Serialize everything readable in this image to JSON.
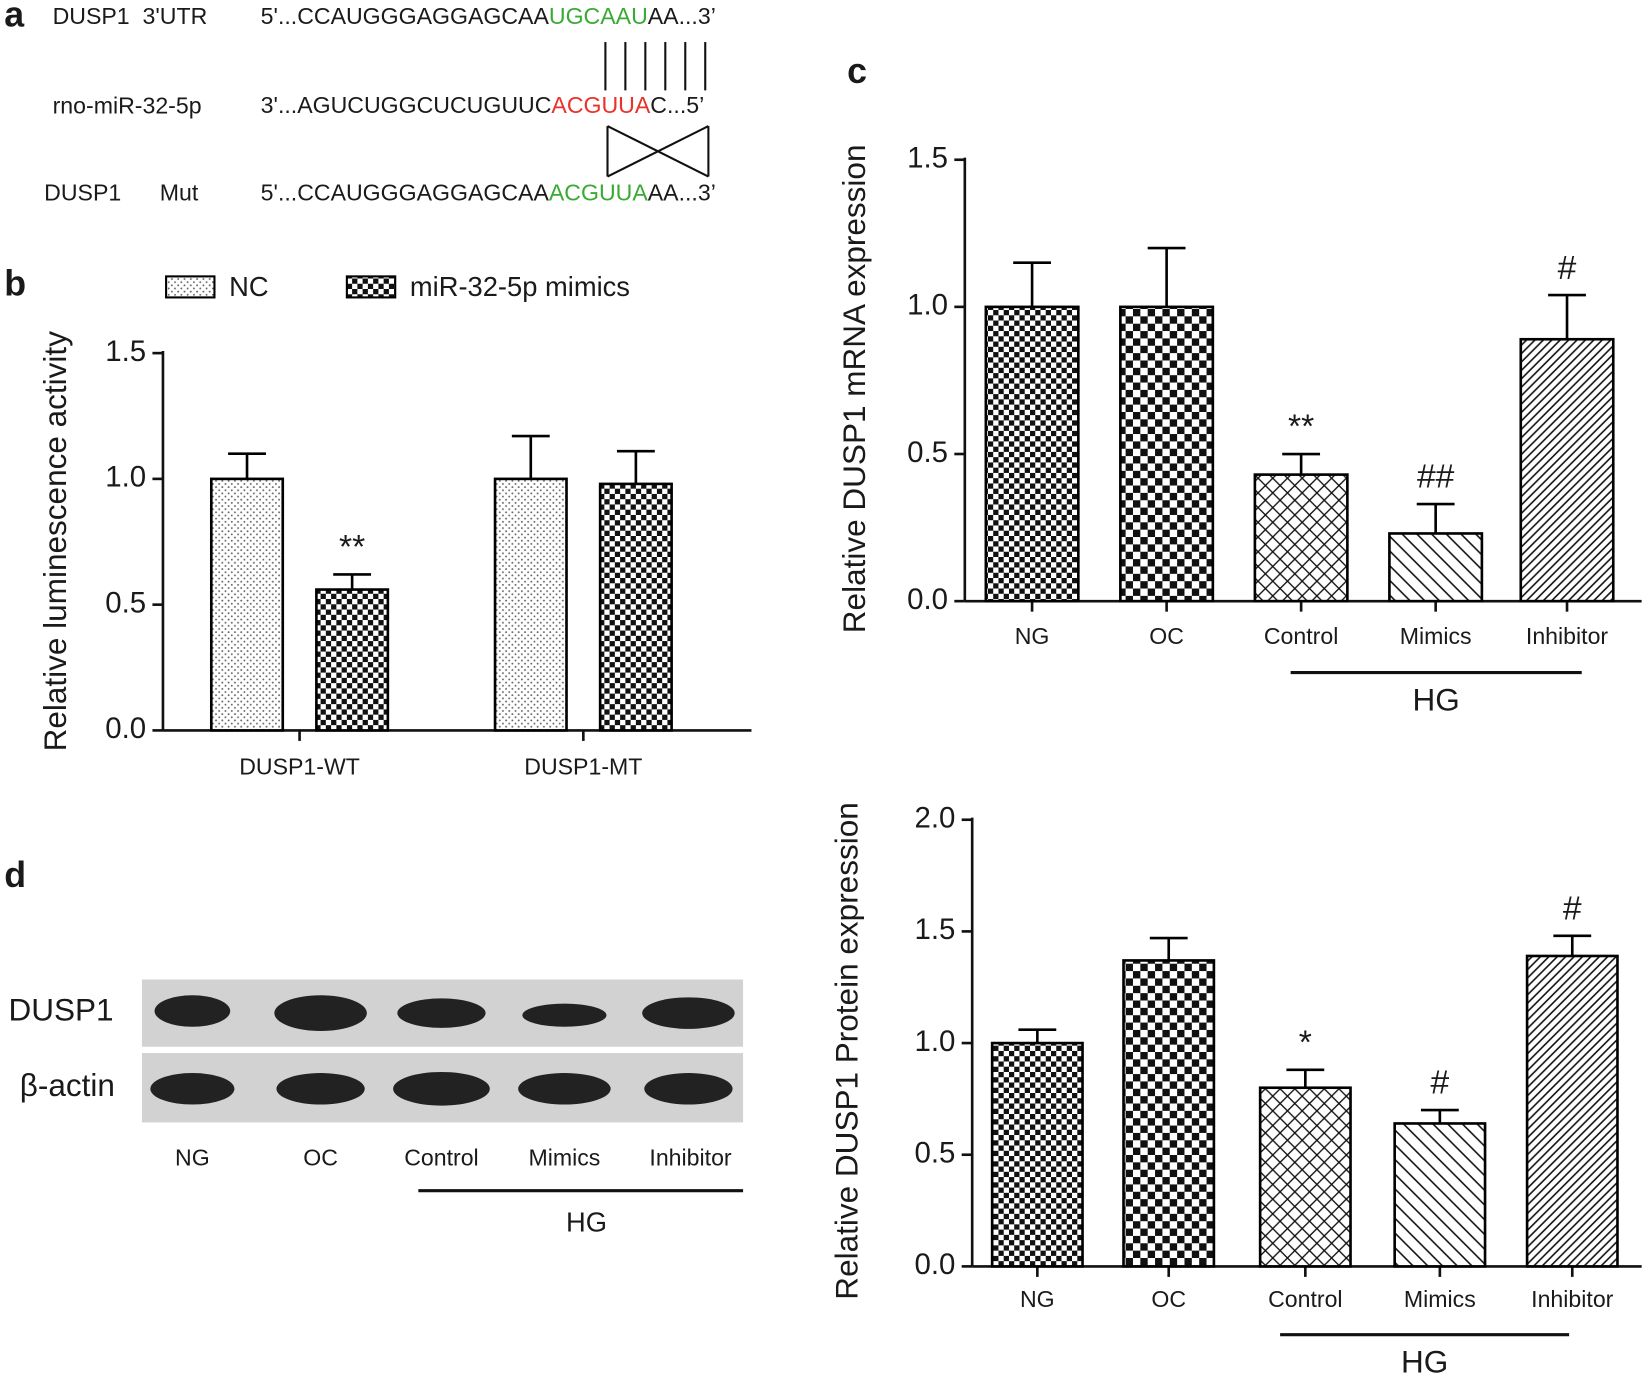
{
  "panel_labels": [
    "a",
    "b",
    "c",
    "d"
  ],
  "sequences": {
    "rows": [
      {
        "label": "DUSP1  3'UTR",
        "before": "5'...CCAUGGGAGGAGCAA",
        "site": "UGCAAU",
        "after": "AA...3’",
        "site_color": "#3aaa35"
      },
      {
        "label": "rno-miR-32-5p",
        "before": "3'...AGUCUGGCUCUGUUC",
        "site": "ACGUUA",
        "after": "C...5’",
        "site_color": "#e8322b"
      },
      {
        "label": "DUSP1      Mut",
        "before": "5'...CCAUGGGAGGAGCAA",
        "site": "ACGUUA",
        "after": "AA...3’",
        "site_color": "#3aaa35"
      }
    ]
  },
  "blot": {
    "rows": [
      "DUSP1",
      "β-actin"
    ],
    "lanes": [
      "NG",
      "OC",
      "Control",
      "Mimics",
      "Inhibitor"
    ],
    "group_label": "HG"
  },
  "chart_data": [
    {
      "type": "bar",
      "ylabel": "Relative luminescence activity",
      "legend": "top",
      "categories": [
        "DUSP1-WT",
        "DUSP1-MT"
      ],
      "series": [
        {
          "name": "NC",
          "color": "#000000",
          "pattern": "dots",
          "values": [
            1.0,
            1.0
          ],
          "errors": [
            0.1,
            0.17
          ],
          "annotations": [
            null,
            null
          ]
        },
        {
          "name": "miR-32-5p mimics",
          "color": "#000000",
          "pattern": "checker-small",
          "values": [
            0.56,
            0.98
          ],
          "errors": [
            0.06,
            0.13
          ],
          "annotations": [
            "**",
            null
          ]
        }
      ],
      "ylim": [
        0,
        1.5
      ],
      "yticks": [
        {
          "value": 0,
          "label": "0.0"
        },
        0.5,
        {
          "value": 1,
          "label": "1.0"
        },
        1.5
      ]
    },
    {
      "type": "bar",
      "ylabel": "Relative DUSP1 mRNA expression",
      "group_label": "HG",
      "categories": [
        "NG",
        "OC",
        "Control",
        "Mimics",
        "Inhibitor"
      ],
      "values": [
        1.0,
        1.0,
        0.43,
        0.23,
        0.89
      ],
      "errors": [
        0.15,
        0.2,
        0.07,
        0.1,
        0.15
      ],
      "annotations": [
        null,
        null,
        "**",
        "##",
        "#"
      ],
      "color": "#000000",
      "patterns": [
        "checker-small",
        "checker-large",
        "crosshatch",
        "diag-back",
        "diag-fwd"
      ],
      "ylim": [
        0,
        1.5
      ],
      "yticks": [
        {
          "value": 0,
          "label": "0.0"
        },
        0.5,
        {
          "value": 1,
          "label": "1.0"
        },
        1.5
      ]
    },
    {
      "type": "bar",
      "ylabel": "Relative DUSP1 Protein expression",
      "group_label": "HG",
      "categories": [
        "NG",
        "OC",
        "Control",
        "Mimics",
        "Inhibitor"
      ],
      "values": [
        1.0,
        1.37,
        0.8,
        0.64,
        1.39
      ],
      "errors": [
        0.06,
        0.1,
        0.08,
        0.06,
        0.09
      ],
      "annotations": [
        null,
        null,
        "*",
        "#",
        "#"
      ],
      "color": "#000000",
      "patterns": [
        "checker-small",
        "checker-large",
        "crosshatch",
        "diag-back",
        "diag-fwd"
      ],
      "ylim": [
        0,
        2
      ],
      "yticks": [
        {
          "value": 0,
          "label": "0.0"
        },
        0.5,
        {
          "value": 1,
          "label": "1.0"
        },
        1.5,
        {
          "value": 2,
          "label": "2.0"
        }
      ]
    }
  ]
}
